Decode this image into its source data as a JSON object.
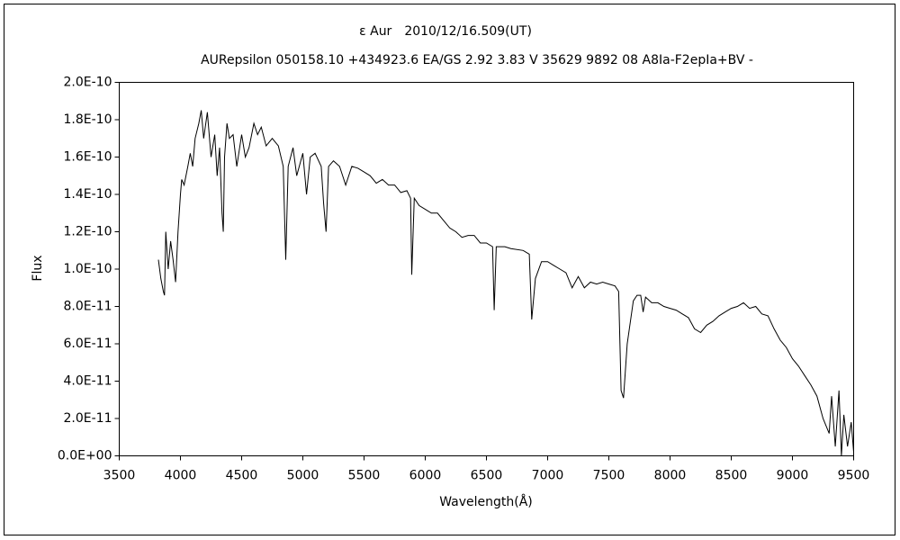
{
  "chart_data": {
    "type": "line",
    "title": "ε Aur　2010/12/16.509(UT)",
    "subtitle": "AURepsilon 050158.10 +434923.6 EA/GS 2.92 3.83 V 35629 9892 08 A8Ia-F2epIa+BV -",
    "x_label": "Wavelength(Å)",
    "y_label": "Flux",
    "xlim": [
      3500,
      9500
    ],
    "xticks": [
      3500,
      4000,
      4500,
      5000,
      5500,
      6000,
      6500,
      7000,
      7500,
      8000,
      8500,
      9000,
      9500
    ],
    "ylim": [
      0,
      2e-10
    ],
    "yticks": [
      {
        "value": 0,
        "label": "0.0E+00"
      },
      {
        "value": 2e-11,
        "label": "2.0E-11"
      },
      {
        "value": 4e-11,
        "label": "4.0E-11"
      },
      {
        "value": 6e-11,
        "label": "6.0E-11"
      },
      {
        "value": 8e-11,
        "label": "8.0E-11"
      },
      {
        "value": 1e-10,
        "label": "1.0E-10"
      },
      {
        "value": 1.2e-10,
        "label": "1.2E-10"
      },
      {
        "value": 1.4e-10,
        "label": "1.4E-10"
      },
      {
        "value": 1.6e-10,
        "label": "1.6E-10"
      },
      {
        "value": 1.8e-10,
        "label": "1.8E-10"
      },
      {
        "value": 2e-10,
        "label": "2.0E-10"
      }
    ],
    "color": "#000000",
    "x": [
      3820,
      3840,
      3860,
      3870,
      3880,
      3900,
      3920,
      3940,
      3960,
      3980,
      4000,
      4010,
      4030,
      4060,
      4080,
      4100,
      4120,
      4150,
      4170,
      4190,
      4220,
      4250,
      4280,
      4300,
      4320,
      4340,
      4350,
      4360,
      4380,
      4400,
      4430,
      4460,
      4500,
      4530,
      4560,
      4600,
      4630,
      4660,
      4700,
      4750,
      4800,
      4840,
      4860,
      4880,
      4920,
      4950,
      5000,
      5030,
      5060,
      5100,
      5150,
      5170,
      5190,
      5210,
      5250,
      5300,
      5350,
      5400,
      5450,
      5500,
      5550,
      5600,
      5650,
      5700,
      5750,
      5800,
      5850,
      5880,
      5890,
      5910,
      5950,
      6000,
      6050,
      6100,
      6150,
      6200,
      6250,
      6300,
      6350,
      6400,
      6450,
      6500,
      6550,
      6563,
      6580,
      6650,
      6700,
      6800,
      6850,
      6870,
      6900,
      6950,
      7000,
      7050,
      7100,
      7150,
      7200,
      7250,
      7300,
      7350,
      7400,
      7450,
      7500,
      7550,
      7580,
      7600,
      7620,
      7650,
      7700,
      7730,
      7760,
      7780,
      7800,
      7850,
      7900,
      7950,
      8000,
      8050,
      8100,
      8150,
      8200,
      8250,
      8300,
      8350,
      8400,
      8450,
      8500,
      8550,
      8600,
      8650,
      8700,
      8750,
      8800,
      8850,
      8900,
      8950,
      9000,
      9050,
      9100,
      9150,
      9200,
      9250,
      9300,
      9320,
      9350,
      9380,
      9400,
      9420,
      9450,
      9480,
      9500
    ],
    "values": [
      1.05e-10,
      9.5e-11,
      8.8e-11,
      8.6e-11,
      1.2e-10,
      1e-10,
      1.15e-10,
      1.05e-10,
      9.3e-11,
      1.2e-10,
      1.4e-10,
      1.48e-10,
      1.45e-10,
      1.55e-10,
      1.62e-10,
      1.55e-10,
      1.7e-10,
      1.78e-10,
      1.85e-10,
      1.7e-10,
      1.84e-10,
      1.6e-10,
      1.72e-10,
      1.5e-10,
      1.65e-10,
      1.3e-10,
      1.2e-10,
      1.6e-10,
      1.78e-10,
      1.7e-10,
      1.72e-10,
      1.55e-10,
      1.72e-10,
      1.6e-10,
      1.65e-10,
      1.78e-10,
      1.72e-10,
      1.76e-10,
      1.66e-10,
      1.7e-10,
      1.66e-10,
      1.55e-10,
      1.05e-10,
      1.55e-10,
      1.65e-10,
      1.5e-10,
      1.62e-10,
      1.4e-10,
      1.6e-10,
      1.62e-10,
      1.55e-10,
      1.35e-10,
      1.2e-10,
      1.55e-10,
      1.58e-10,
      1.55e-10,
      1.45e-10,
      1.55e-10,
      1.54e-10,
      1.52e-10,
      1.5e-10,
      1.46e-10,
      1.48e-10,
      1.45e-10,
      1.45e-10,
      1.41e-10,
      1.42e-10,
      1.38e-10,
      9.7e-11,
      1.38e-10,
      1.34e-10,
      1.32e-10,
      1.3e-10,
      1.3e-10,
      1.26e-10,
      1.22e-10,
      1.2e-10,
      1.17e-10,
      1.18e-10,
      1.18e-10,
      1.14e-10,
      1.14e-10,
      1.12e-10,
      7.8e-11,
      1.12e-10,
      1.12e-10,
      1.11e-10,
      1.1e-10,
      1.08e-10,
      7.3e-11,
      9.5e-11,
      1.04e-10,
      1.04e-10,
      1.02e-10,
      1e-10,
      9.8e-11,
      9e-11,
      9.6e-11,
      9e-11,
      9.3e-11,
      9.2e-11,
      9.3e-11,
      9.2e-11,
      9.1e-11,
      8.8e-11,
      3.5e-11,
      3.1e-11,
      6e-11,
      8.3e-11,
      8.6e-11,
      8.6e-11,
      7.7e-11,
      8.5e-11,
      8.2e-11,
      8.2e-11,
      8e-11,
      7.9e-11,
      7.8e-11,
      7.6e-11,
      7.4e-11,
      6.8e-11,
      6.6e-11,
      7e-11,
      7.2e-11,
      7.5e-11,
      7.7e-11,
      7.9e-11,
      8e-11,
      8.2e-11,
      7.9e-11,
      8e-11,
      7.6e-11,
      7.5e-11,
      6.8e-11,
      6.2e-11,
      5.8e-11,
      5.2e-11,
      4.8e-11,
      4.3e-11,
      3.8e-11,
      3.2e-11,
      2e-11,
      1.2e-11,
      3.2e-11,
      5e-12,
      3.5e-11,
      0,
      2.2e-11,
      5e-12,
      1.8e-11,
      2e-12
    ]
  }
}
